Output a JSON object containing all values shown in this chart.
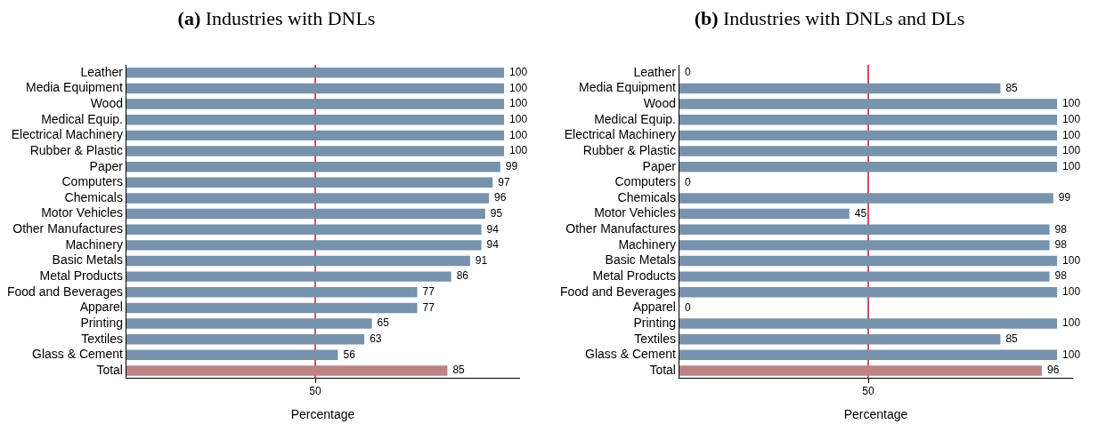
{
  "chart_data": [
    {
      "type": "bar",
      "orientation": "horizontal",
      "title": "(a) Industries with DNLs",
      "xlabel": "Percentage",
      "categories": [
        "Leather",
        "Media Equipment",
        "Wood",
        "Medical Equip.",
        "Electrical Machinery",
        "Rubber & Plastic",
        "Paper",
        "Computers",
        "Chemicals",
        "Motor Vehicles",
        "Other Manufactures",
        "Machinery",
        "Basic Metals",
        "Metal Products",
        "Food and Beverages",
        "Apparel",
        "Printing",
        "Textiles",
        "Glass & Cement",
        "Total"
      ],
      "values": [
        100,
        100,
        100,
        100,
        100,
        100,
        99,
        97,
        96,
        95,
        94,
        94,
        91,
        86,
        77,
        77,
        65,
        63,
        56,
        85
      ],
      "colors": [
        "#7792ac",
        "#7792ac",
        "#7792ac",
        "#7792ac",
        "#7792ac",
        "#7792ac",
        "#7792ac",
        "#7792ac",
        "#7792ac",
        "#7792ac",
        "#7792ac",
        "#7792ac",
        "#7792ac",
        "#7792ac",
        "#7792ac",
        "#7792ac",
        "#7792ac",
        "#7792ac",
        "#7792ac",
        "#bd8384"
      ],
      "xlim": [
        0,
        104
      ],
      "xticks": [
        50
      ],
      "grid": false,
      "data_labels": true,
      "ref_lines": [
        {
          "axis": "x",
          "value": 50,
          "color": "#c8102e"
        }
      ]
    },
    {
      "type": "bar",
      "orientation": "horizontal",
      "title": "(b) Industries with DNLs and DLs",
      "xlabel": "Percentage",
      "categories": [
        "Leather",
        "Media Equipment",
        "Wood",
        "Medical Equip.",
        "Electrical Machinery",
        "Rubber & Plastic",
        "Paper",
        "Computers",
        "Chemicals",
        "Motor Vehicles",
        "Other Manufactures",
        "Machinery",
        "Basic Metals",
        "Metal Products",
        "Food and Beverages",
        "Apparel",
        "Printing",
        "Textiles",
        "Glass & Cement",
        "Total"
      ],
      "values": [
        0,
        85,
        100,
        100,
        100,
        100,
        100,
        0,
        99,
        45,
        98,
        98,
        100,
        98,
        100,
        0,
        100,
        85,
        100,
        96
      ],
      "colors": [
        "#7792ac",
        "#7792ac",
        "#7792ac",
        "#7792ac",
        "#7792ac",
        "#7792ac",
        "#7792ac",
        "#7792ac",
        "#7792ac",
        "#7792ac",
        "#7792ac",
        "#7792ac",
        "#7792ac",
        "#7792ac",
        "#7792ac",
        "#7792ac",
        "#7792ac",
        "#7792ac",
        "#7792ac",
        "#bd8384"
      ],
      "xlim": [
        0,
        104
      ],
      "xticks": [
        50
      ],
      "grid": false,
      "data_labels": true,
      "ref_lines": [
        {
          "axis": "x",
          "value": 50,
          "color": "#c8102e"
        }
      ]
    }
  ]
}
